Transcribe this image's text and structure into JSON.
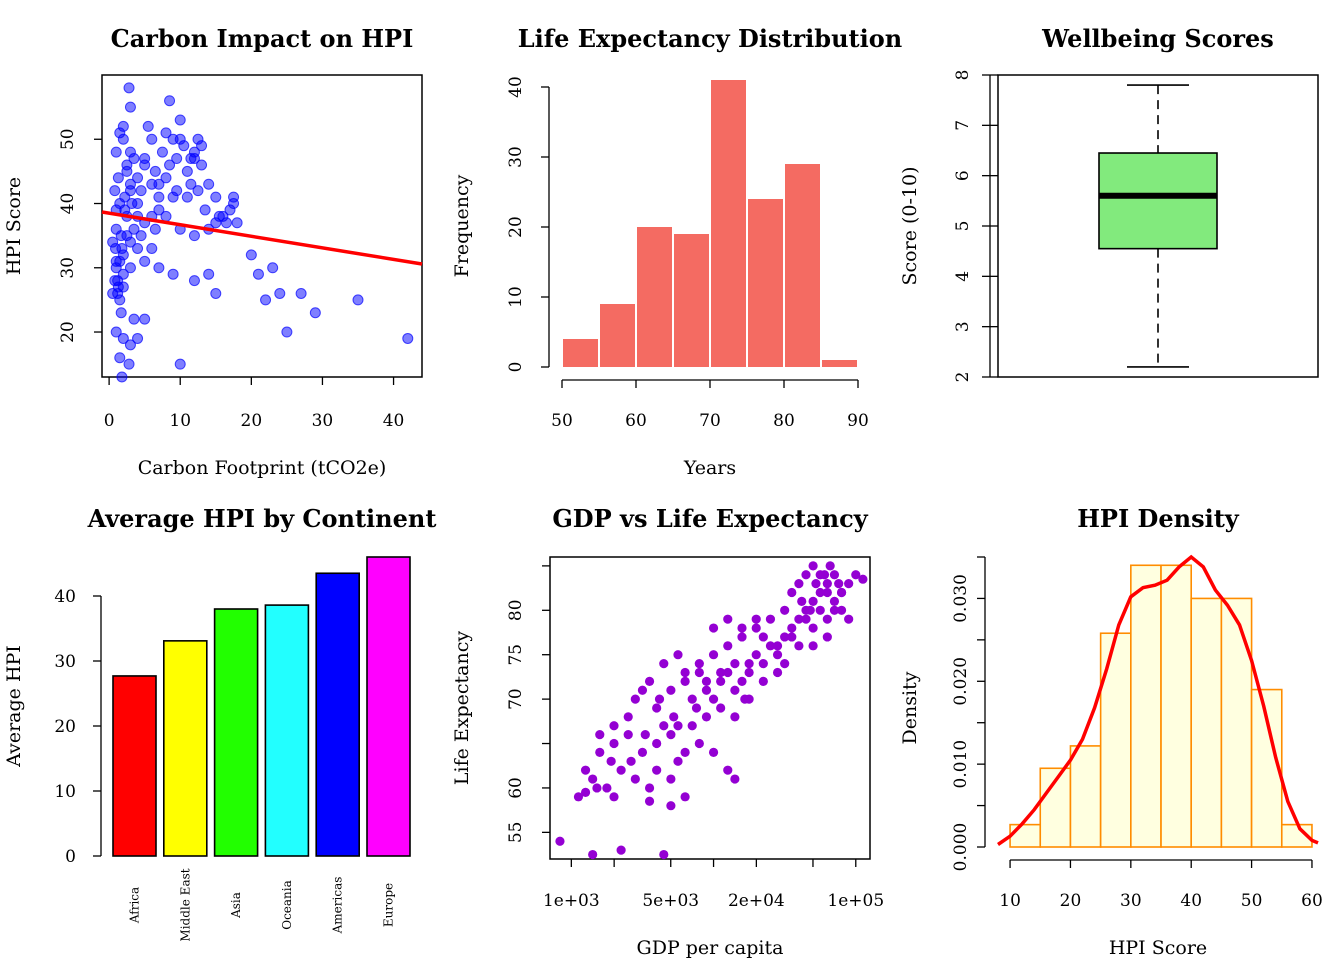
{
  "panels": [
    {
      "type": "scatter",
      "title": "Carbon Impact on HPI",
      "xlabel": "Carbon Footprint (tCO2e)",
      "ylabel": "HPI Score",
      "xlim": [
        -1,
        44
      ],
      "ylim": [
        13,
        60
      ],
      "xticks": [
        0,
        10,
        20,
        30,
        40
      ],
      "yticks": [
        20,
        30,
        40,
        50
      ],
      "point_color": "#0000ff",
      "trendline": {
        "color": "#ff0000",
        "intercept": 38.5,
        "slope": -0.18
      },
      "points": [
        [
          0.5,
          34
        ],
        [
          1.0,
          31
        ],
        [
          1.2,
          28
        ],
        [
          1.5,
          25
        ],
        [
          2.0,
          29
        ],
        [
          1.8,
          33
        ],
        [
          1.0,
          36
        ],
        [
          2.2,
          39
        ],
        [
          1.5,
          40
        ],
        [
          2.5,
          45
        ],
        [
          3.0,
          48
        ],
        [
          3.5,
          47
        ],
        [
          2.0,
          52
        ],
        [
          1.5,
          51
        ],
        [
          3.0,
          55
        ],
        [
          2.8,
          58
        ],
        [
          2.0,
          50
        ],
        [
          1.0,
          48
        ],
        [
          2.5,
          46
        ],
        [
          3.0,
          43
        ],
        [
          4.0,
          44
        ],
        [
          4.5,
          42
        ],
        [
          5.0,
          47
        ],
        [
          5.5,
          52
        ],
        [
          6.0,
          50
        ],
        [
          6.5,
          45
        ],
        [
          7.0,
          41
        ],
        [
          7.5,
          48
        ],
        [
          8.0,
          51
        ],
        [
          8.5,
          56
        ],
        [
          9.0,
          50
        ],
        [
          9.5,
          47
        ],
        [
          10.0,
          53
        ],
        [
          10.5,
          49
        ],
        [
          11.0,
          45
        ],
        [
          11.5,
          43
        ],
        [
          12.0,
          48
        ],
        [
          12.5,
          50
        ],
        [
          13.0,
          46
        ],
        [
          14.0,
          43
        ],
        [
          15.0,
          41
        ],
        [
          16.0,
          38
        ],
        [
          17.0,
          39
        ],
        [
          17.5,
          40
        ],
        [
          18.0,
          37
        ],
        [
          12.0,
          35
        ],
        [
          10.0,
          36
        ],
        [
          9.0,
          41
        ],
        [
          8.0,
          38
        ],
        [
          7.0,
          39
        ],
        [
          6.0,
          38
        ],
        [
          5.0,
          37
        ],
        [
          4.0,
          38
        ],
        [
          3.5,
          36
        ],
        [
          3.0,
          34
        ],
        [
          2.5,
          35
        ],
        [
          1.0,
          39
        ],
        [
          0.8,
          42
        ],
        [
          1.3,
          44
        ],
        [
          2.0,
          27
        ],
        [
          1.2,
          26
        ],
        [
          1.7,
          23
        ],
        [
          0.5,
          26
        ],
        [
          1.0,
          20
        ],
        [
          2.0,
          19
        ],
        [
          3.0,
          18
        ],
        [
          4.0,
          19
        ],
        [
          1.5,
          16
        ],
        [
          2.8,
          15
        ],
        [
          1.8,
          13
        ],
        [
          3.5,
          22
        ],
        [
          5.0,
          22
        ],
        [
          10.0,
          15
        ],
        [
          9.0,
          29
        ],
        [
          7.0,
          30
        ],
        [
          6.0,
          33
        ],
        [
          5.0,
          31
        ],
        [
          4.0,
          33
        ],
        [
          3.0,
          30
        ],
        [
          2.0,
          32
        ],
        [
          12.0,
          28
        ],
        [
          14.0,
          29
        ],
        [
          15.0,
          26
        ],
        [
          20.0,
          32
        ],
        [
          21.0,
          29
        ],
        [
          22.0,
          25
        ],
        [
          23.0,
          30
        ],
        [
          24.0,
          26
        ],
        [
          25.0,
          20
        ],
        [
          27.0,
          26
        ],
        [
          29.0,
          23
        ],
        [
          35.0,
          25
        ],
        [
          42.0,
          19
        ],
        [
          1.0,
          30
        ],
        [
          1.5,
          31
        ],
        [
          0.8,
          28
        ],
        [
          1.3,
          27
        ],
        [
          2.5,
          38
        ],
        [
          4.0,
          40
        ],
        [
          6.0,
          43
        ],
        [
          8.0,
          44
        ],
        [
          9.5,
          42
        ],
        [
          11.0,
          41
        ],
        [
          12.5,
          42
        ],
        [
          13.5,
          39
        ],
        [
          15.5,
          38
        ],
        [
          16.5,
          37
        ],
        [
          17.5,
          41
        ],
        [
          3.0,
          42
        ],
        [
          5.0,
          46
        ],
        [
          7.0,
          43
        ],
        [
          8.5,
          46
        ],
        [
          10.0,
          50
        ],
        [
          11.5,
          47
        ],
        [
          12.0,
          47
        ],
        [
          13.0,
          49
        ],
        [
          14.0,
          36
        ],
        [
          15.0,
          37
        ],
        [
          4.5,
          35
        ],
        [
          6.5,
          36
        ],
        [
          3.2,
          40
        ],
        [
          2.2,
          41
        ],
        [
          1.7,
          35
        ],
        [
          0.9,
          33
        ]
      ]
    },
    {
      "type": "histogram",
      "title": "Life Expectancy Distribution",
      "xlabel": "Years",
      "ylabel": "Frequency",
      "bar_color": "#f46b62",
      "xlim": [
        50,
        90
      ],
      "ylim": [
        0,
        41
      ],
      "xticks": [
        50,
        60,
        70,
        80,
        90
      ],
      "yticks": [
        0,
        10,
        20,
        30,
        40
      ],
      "bins": [
        [
          50,
          55,
          4
        ],
        [
          55,
          60,
          9
        ],
        [
          60,
          65,
          20
        ],
        [
          65,
          70,
          19
        ],
        [
          70,
          75,
          41
        ],
        [
          75,
          80,
          24
        ],
        [
          80,
          85,
          29
        ],
        [
          85,
          90,
          1
        ]
      ]
    },
    {
      "type": "boxplot",
      "title": "Wellbeing Scores",
      "ylabel": "Score (0-10)",
      "box_color": "#82ea7d",
      "ylim": [
        2,
        8
      ],
      "yticks": [
        2,
        3,
        4,
        5,
        6,
        7,
        8
      ],
      "stats": {
        "min": 2.2,
        "q1": 4.55,
        "median": 5.6,
        "q3": 6.45,
        "max": 7.8
      }
    },
    {
      "type": "bar",
      "title": "Average HPI by Continent",
      "ylabel": "Average HPI",
      "ylim": [
        0,
        46
      ],
      "yticks": [
        0,
        10,
        20,
        30,
        40
      ],
      "categories": [
        "Africa",
        "Middle East",
        "Asia",
        "Oceania",
        "Americas",
        "Europe"
      ],
      "values": [
        27.7,
        33.1,
        38.0,
        38.6,
        43.5,
        46.0
      ],
      "colors": [
        "#ff0000",
        "#ffff00",
        "#22ff00",
        "#22ffff",
        "#0000ff",
        "#ff00ff"
      ]
    },
    {
      "type": "scatter",
      "title": "GDP vs Life Expectancy",
      "xlabel": "GDP per capita",
      "ylabel": "Life Expectancy",
      "log_x": true,
      "xlim_log10": [
        2.85,
        5.1
      ],
      "ylim": [
        52,
        86
      ],
      "xticks": [
        {
          "v": 3,
          "label": "1e+03"
        },
        {
          "v": 3.699,
          "label": "5e+03"
        },
        {
          "v": 4.301,
          "label": "2e+04"
        },
        {
          "v": 5,
          "label": "1e+05"
        }
      ],
      "minor_xticks": [
        3.301,
        4.0,
        4.699
      ],
      "yticks": [
        55,
        60,
        70,
        75,
        80
      ],
      "minor_yticks": [
        65,
        85
      ],
      "point_color": "#9400d3",
      "points": [
        [
          2.92,
          54
        ],
        [
          3.15,
          52.5
        ],
        [
          3.35,
          53
        ],
        [
          3.65,
          52.5
        ],
        [
          3.05,
          59
        ],
        [
          3.1,
          59.5
        ],
        [
          3.15,
          61
        ],
        [
          3.25,
          60
        ],
        [
          3.3,
          59
        ],
        [
          3.35,
          62
        ],
        [
          3.45,
          61
        ],
        [
          3.55,
          60
        ],
        [
          3.6,
          62
        ],
        [
          3.7,
          61
        ],
        [
          3.75,
          63
        ],
        [
          3.1,
          62
        ],
        [
          3.2,
          64
        ],
        [
          3.3,
          65
        ],
        [
          3.4,
          66
        ],
        [
          3.5,
          64
        ],
        [
          3.6,
          65
        ],
        [
          3.7,
          66
        ],
        [
          3.8,
          64
        ],
        [
          3.9,
          65
        ],
        [
          4.0,
          64
        ],
        [
          4.1,
          62
        ],
        [
          4.15,
          61
        ],
        [
          3.8,
          59
        ],
        [
          3.7,
          58
        ],
        [
          3.55,
          58.5
        ],
        [
          3.45,
          70
        ],
        [
          3.6,
          69
        ],
        [
          3.7,
          71
        ],
        [
          3.8,
          72
        ],
        [
          3.85,
          70
        ],
        [
          3.9,
          73
        ],
        [
          3.95,
          71
        ],
        [
          4.0,
          70
        ],
        [
          4.05,
          72
        ],
        [
          4.1,
          73
        ],
        [
          4.15,
          74
        ],
        [
          4.2,
          72
        ],
        [
          4.25,
          73
        ],
        [
          4.3,
          75
        ],
        [
          4.35,
          74
        ],
        [
          4.4,
          76
        ],
        [
          4.45,
          75
        ],
        [
          4.5,
          77
        ],
        [
          4.55,
          78
        ],
        [
          4.6,
          79
        ],
        [
          4.65,
          80
        ],
        [
          4.7,
          81
        ],
        [
          4.75,
          82
        ],
        [
          4.8,
          83
        ],
        [
          4.85,
          81
        ],
        [
          4.9,
          82
        ],
        [
          4.95,
          83
        ],
        [
          5.0,
          84
        ],
        [
          5.05,
          83.5
        ],
        [
          4.55,
          82
        ],
        [
          4.6,
          83
        ],
        [
          4.65,
          84
        ],
        [
          4.7,
          85
        ],
        [
          4.75,
          84
        ],
        [
          4.8,
          82
        ],
        [
          4.85,
          84
        ],
        [
          4.9,
          80
        ],
        [
          4.95,
          79
        ],
        [
          4.5,
          80
        ],
        [
          4.4,
          79
        ],
        [
          4.3,
          78
        ],
        [
          4.2,
          77
        ],
        [
          4.1,
          76
        ],
        [
          4.0,
          75
        ],
        [
          3.9,
          74
        ],
        [
          3.8,
          73
        ],
        [
          3.75,
          75
        ],
        [
          3.65,
          74
        ],
        [
          3.55,
          72
        ],
        [
          3.5,
          71
        ],
        [
          3.4,
          68
        ],
        [
          3.3,
          67
        ],
        [
          3.2,
          66
        ],
        [
          4.0,
          78
        ],
        [
          4.1,
          79
        ],
        [
          4.2,
          78
        ],
        [
          4.3,
          79
        ],
        [
          4.35,
          77
        ],
        [
          4.45,
          76
        ],
        [
          4.55,
          77
        ],
        [
          4.65,
          79
        ],
        [
          4.7,
          78
        ],
        [
          4.75,
          80
        ],
        [
          4.8,
          79
        ],
        [
          4.85,
          80
        ],
        [
          4.9,
          82
        ],
        [
          4.25,
          70
        ],
        [
          4.22,
          70
        ],
        [
          4.15,
          68
        ],
        [
          4.05,
          69
        ],
        [
          3.95,
          68
        ],
        [
          3.85,
          67
        ],
        [
          3.75,
          67
        ],
        [
          3.65,
          67
        ],
        [
          4.45,
          73
        ],
        [
          4.5,
          74
        ],
        [
          4.35,
          72
        ],
        [
          4.25,
          74
        ],
        [
          4.15,
          71
        ],
        [
          4.05,
          73
        ],
        [
          3.95,
          72
        ],
        [
          3.88,
          69
        ],
        [
          3.72,
          68
        ],
        [
          3.62,
          70
        ],
        [
          3.52,
          66
        ],
        [
          3.42,
          63
        ],
        [
          3.28,
          63
        ],
        [
          3.18,
          60
        ],
        [
          4.6,
          76
        ],
        [
          4.7,
          76
        ],
        [
          4.8,
          77
        ],
        [
          4.62,
          81
        ],
        [
          4.68,
          80
        ],
        [
          4.72,
          83
        ],
        [
          4.78,
          84
        ],
        [
          4.82,
          85
        ],
        [
          4.88,
          83
        ]
      ]
    },
    {
      "type": "histogram-density",
      "title": "HPI Density",
      "xlabel": "HPI Score",
      "ylabel": "Density",
      "bar_fill": "#ffffe0",
      "bar_stroke": "#ff8c00",
      "line_color": "#ff0000",
      "xlim": [
        8,
        61
      ],
      "ylim": [
        0,
        0.035
      ],
      "xticks": [
        10,
        20,
        30,
        40,
        50,
        60
      ],
      "yticks": [
        {
          "v": 0.0,
          "label": "0.000"
        },
        {
          "v": 0.01,
          "label": "0.010"
        },
        {
          "v": 0.02,
          "label": "0.020"
        },
        {
          "v": 0.03,
          "label": "0.030"
        }
      ],
      "minor_yticks": [
        0.005,
        0.015,
        0.025,
        0.035
      ],
      "bins": [
        [
          10,
          15,
          0.0027
        ],
        [
          15,
          20,
          0.0095
        ],
        [
          20,
          25,
          0.0122
        ],
        [
          25,
          30,
          0.0258
        ],
        [
          30,
          35,
          0.034
        ],
        [
          35,
          40,
          0.034
        ],
        [
          40,
          45,
          0.03
        ],
        [
          45,
          50,
          0.03
        ],
        [
          50,
          55,
          0.019
        ],
        [
          55,
          60,
          0.0027
        ]
      ],
      "density_line": [
        [
          8,
          0.0003
        ],
        [
          10,
          0.0013
        ],
        [
          12,
          0.0028
        ],
        [
          14,
          0.0045
        ],
        [
          16,
          0.0065
        ],
        [
          18,
          0.0085
        ],
        [
          20,
          0.0105
        ],
        [
          22,
          0.013
        ],
        [
          24,
          0.0168
        ],
        [
          26,
          0.0215
        ],
        [
          28,
          0.0268
        ],
        [
          30,
          0.0302
        ],
        [
          32,
          0.0313
        ],
        [
          34,
          0.0316
        ],
        [
          36,
          0.0322
        ],
        [
          38,
          0.0338
        ],
        [
          40,
          0.035
        ],
        [
          42,
          0.0338
        ],
        [
          44,
          0.031
        ],
        [
          46,
          0.0292
        ],
        [
          48,
          0.0268
        ],
        [
          50,
          0.0225
        ],
        [
          52,
          0.017
        ],
        [
          54,
          0.0108
        ],
        [
          56,
          0.0055
        ],
        [
          58,
          0.0022
        ],
        [
          60,
          0.0008
        ],
        [
          61,
          0.0005
        ]
      ]
    }
  ]
}
